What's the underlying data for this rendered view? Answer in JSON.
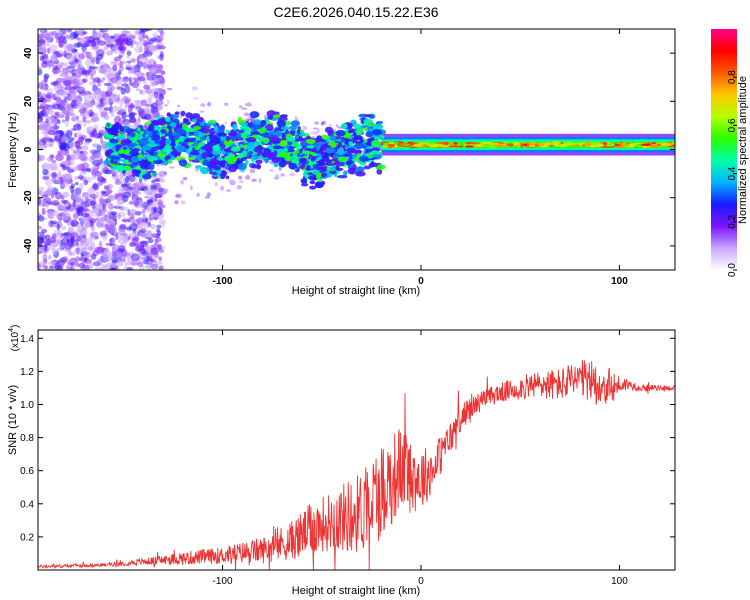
{
  "title": "C2E6.2026.040.15.22.E36",
  "chart_data": [
    {
      "type": "heatmap",
      "xlabel": "Height of straight line (km)",
      "ylabel": "Frequency (Hz)",
      "xlim": [
        -193,
        128
      ],
      "ylim": [
        -50,
        50
      ],
      "xticks": [
        -100,
        0,
        100
      ],
      "xtick_labels": [
        "-100",
        "0",
        "100"
      ],
      "yticks": [
        -40,
        -20,
        0,
        20,
        40
      ],
      "ytick_labels": [
        "-40",
        "-20",
        "0",
        "20",
        "40"
      ],
      "colorbar": {
        "label": "Normalized spectral amplitude",
        "range": [
          0,
          1
        ],
        "ticks": [
          0,
          0.2,
          0.4,
          0.6,
          0.8
        ],
        "tick_labels": [
          "0.0",
          "0.2",
          "0.4",
          "0.6",
          "0.8"
        ],
        "colors": [
          "#ffffff",
          "#c9a6ff",
          "#7a14ff",
          "#1a1aff",
          "#00b4ff",
          "#00ffa8",
          "#28ff00",
          "#b4ff00",
          "#ffc800",
          "#ff5a00",
          "#ff0000",
          "#ff0088"
        ]
      },
      "band_center_hz": 2,
      "band_halfwidth_hz": {
        "noisy_region": 6,
        "stable_region": 2.5
      },
      "stable_from_km": -20,
      "noise_only_below_km": -145
    },
    {
      "type": "line",
      "xlabel": "Height of straight line (km)",
      "ylabel": "SNR (10 * v/v)",
      "y_multiplier": "(x10^4)",
      "y_multiplier_base": "(x10",
      "y_multiplier_exp": "4",
      "y_multiplier_close": ")",
      "xlim": [
        -193,
        128
      ],
      "ylim": [
        0,
        1.45
      ],
      "xticks": [
        -100,
        0,
        100
      ],
      "xtick_labels": [
        "-100",
        "0",
        "100"
      ],
      "yticks": [
        0.2,
        0.4,
        0.6,
        0.8,
        1.0,
        1.2,
        1.4
      ],
      "ytick_labels": [
        "0.2",
        "0.4",
        "0.6",
        "0.8",
        "1.0",
        "1.2",
        "1.4"
      ],
      "series": [
        {
          "name": "SNR",
          "color": "#ee3333",
          "x": [
            -193,
            -160,
            -140,
            -120,
            -100,
            -80,
            -65,
            -55,
            -45,
            -38,
            -30,
            -25,
            -20,
            -15,
            -10,
            -5,
            0,
            5,
            10,
            15,
            20,
            25,
            30,
            35,
            40,
            50,
            60,
            70,
            80,
            90,
            95,
            100,
            105,
            110,
            115,
            120,
            128
          ],
          "values": [
            0.02,
            0.03,
            0.05,
            0.07,
            0.09,
            0.12,
            0.18,
            0.25,
            0.3,
            0.32,
            0.35,
            0.42,
            0.48,
            0.55,
            0.62,
            0.58,
            0.55,
            0.6,
            0.7,
            0.8,
            0.92,
            0.98,
            1.02,
            1.05,
            1.07,
            1.1,
            1.12,
            1.12,
            1.15,
            1.13,
            1.1,
            1.12,
            1.12,
            1.1,
            1.1,
            1.1,
            1.1
          ],
          "noise_amplitude": [
            0.01,
            0.01,
            0.02,
            0.04,
            0.05,
            0.08,
            0.12,
            0.16,
            0.18,
            0.22,
            0.25,
            0.28,
            0.3,
            0.28,
            0.26,
            0.24,
            0.2,
            0.15,
            0.12,
            0.1,
            0.08,
            0.07,
            0.06,
            0.06,
            0.06,
            0.07,
            0.09,
            0.1,
            0.12,
            0.14,
            0.12,
            0.06,
            0.03,
            0.02,
            0.02,
            0.015,
            0.015
          ]
        }
      ]
    }
  ]
}
